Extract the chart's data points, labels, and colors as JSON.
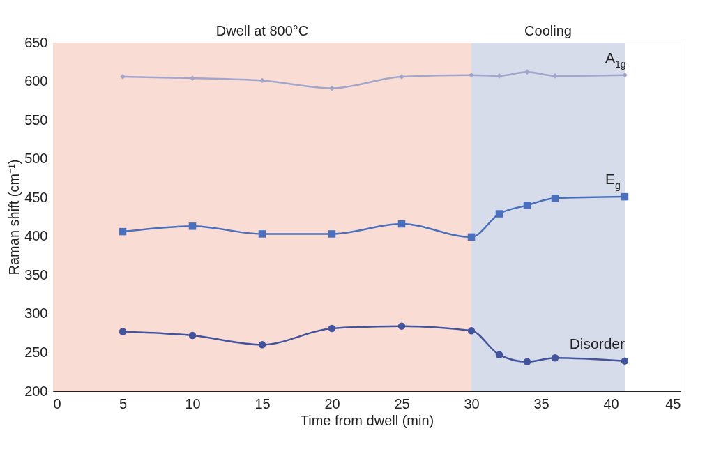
{
  "chart_data": {
    "type": "line",
    "xlabel": "Time from dwell (min)",
    "ylabel": "Raman shift (cm⁻¹)",
    "xlim": [
      0,
      45
    ],
    "xticks": [
      0,
      5,
      10,
      15,
      20,
      25,
      30,
      35,
      40,
      45
    ],
    "ylim": [
      200,
      650
    ],
    "yticks": [
      200,
      250,
      300,
      350,
      400,
      450,
      500,
      550,
      600,
      650
    ],
    "grid": false,
    "bands": [
      {
        "axis": "x",
        "from": 0,
        "to": 30,
        "label": "Dwell at 800°C",
        "color": "#f9dcd3"
      },
      {
        "axis": "x",
        "from": 30,
        "to": 41,
        "label": "Cooling",
        "color": "#d6dce9"
      }
    ],
    "series": [
      {
        "name": "A$_{1g}$",
        "color": "#a3a6cc",
        "marker": "diamond",
        "x": [
          5,
          10,
          15,
          20,
          25,
          30,
          32,
          34,
          36,
          41
        ],
        "values": [
          606,
          604,
          601,
          591,
          606,
          608,
          607,
          612,
          607,
          608
        ]
      },
      {
        "name": "E$_{g}$",
        "color": "#4a6fbd",
        "marker": "square",
        "x": [
          5,
          10,
          15,
          20,
          25,
          30,
          32,
          34,
          36,
          41
        ],
        "values": [
          406,
          413,
          403,
          403,
          416,
          399,
          429,
          440,
          449,
          451
        ]
      },
      {
        "name": "Disorder",
        "color": "#44549c",
        "marker": "circle",
        "x": [
          5,
          10,
          15,
          20,
          25,
          30,
          32,
          34,
          36,
          41
        ],
        "values": [
          277,
          272,
          260,
          281,
          284,
          278,
          247,
          238,
          243,
          239
        ]
      }
    ]
  }
}
